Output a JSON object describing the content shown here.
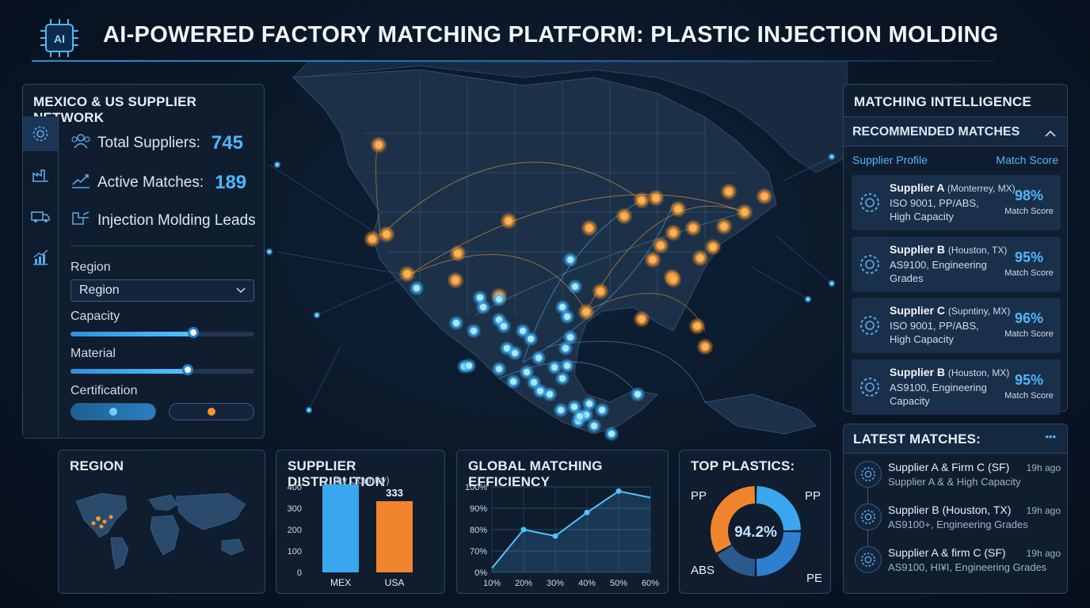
{
  "header": {
    "title": "AI-POWERED FACTORY MATCHING PLATFORM: PLASTIC INJECTION MOLDING",
    "logo_text": "AI"
  },
  "left_panel": {
    "title": "MEXICO & US SUPPLIER NETWORK",
    "sidebar_icons": [
      "gear-icon",
      "factory-icon",
      "truck-icon",
      "chart-icon"
    ],
    "stats": [
      {
        "label": "Total Suppliers:",
        "value": "745",
        "icon": "users-icon"
      },
      {
        "label": "Active Matches:",
        "value": "189",
        "icon": "trend-icon"
      },
      {
        "label": "Injection Molding Leads",
        "value": "",
        "icon": "molding-icon"
      }
    ],
    "filters": {
      "region_label": "Region",
      "region_value": "Region",
      "capacity_label": "Capacity",
      "capacity_level": 0.67,
      "material_label": "Material",
      "material_level": 0.64,
      "certification_label": "Certification"
    }
  },
  "region_panel": {
    "title": "REGION"
  },
  "supplier_distribution": {
    "title": "SUPPLIER DISTRIBUTION",
    "subtitle": "(by Country)"
  },
  "efficiency": {
    "title": "GLOBAL MATCHING EFFICIENCY"
  },
  "top_plastics": {
    "title": "TOP PLASTICS:",
    "center": "94.2%"
  },
  "matching": {
    "title": "MATCHING INTELLIGENCE",
    "section": "RECOMMENDED MATCHES",
    "col_profile": "Supplier Profile",
    "col_score": "Match Score",
    "cards": [
      {
        "name": "Supplier A",
        "loc": "(Monterrey, MX)",
        "desc": "ISO 9001, PP/ABS, High Capacity",
        "score": "98%",
        "score_label": "Match Score"
      },
      {
        "name": "Supplier B",
        "loc": "(Houston, TX)",
        "desc": "AS9100, Engineering Grades",
        "score": "95%",
        "score_label": "Match Score"
      },
      {
        "name": "Supplier C",
        "loc": "(Supntiny, MX)",
        "desc": "ISO 9001, PP/ABS, High Capacity",
        "score": "96%",
        "score_label": "Match Score"
      },
      {
        "name": "Supplier B",
        "loc": "(Houston, MX)",
        "desc": "AS9100, Engineering Capacity",
        "score": "95%",
        "score_label": "Match Score"
      }
    ]
  },
  "latest": {
    "title": "LATEST MATCHES:",
    "more": "•••",
    "items": [
      {
        "title": "Supplier A & Firm C (SF)",
        "time": "19h ago",
        "sub": "Supplier A & & High Capacity"
      },
      {
        "title": "Supplier B (Houston, TX)",
        "time": "19h ago",
        "sub": "AS9100+, Engineering Grades"
      },
      {
        "title": "Supplier A & firm C (SF)",
        "time": "19h ago",
        "sub": "AS9100, HI¥I, Engineering Grades"
      }
    ]
  },
  "colors": {
    "accent": "#4fb6ff",
    "orange": "#f5a03a",
    "panel": "#101e30"
  },
  "chart_data": [
    {
      "type": "bar",
      "title": "SUPPLIER DISTRIBUTION",
      "subtitle": "(by Country)",
      "categories": [
        "MEX",
        "USA"
      ],
      "values": [
        412,
        333
      ],
      "colors": [
        "#3aa7ee",
        "#f0852e"
      ],
      "ylim": [
        0,
        400
      ],
      "yticks": [
        0,
        100,
        200,
        300,
        400
      ],
      "data_labels": [
        "412",
        "333"
      ]
    },
    {
      "type": "area",
      "title": "GLOBAL MATCHING EFFICIENCY",
      "x": [
        10,
        20,
        30,
        40,
        50,
        60
      ],
      "xticks": [
        "10%",
        "20%",
        "30%",
        "40%",
        "50%",
        "60%"
      ],
      "y": [
        14,
        80,
        77,
        88,
        98,
        95
      ],
      "yticks": [
        "0%",
        "70%",
        "80%",
        "90%",
        "100%"
      ],
      "grid": true
    },
    {
      "type": "pie",
      "title": "TOP PLASTICS:",
      "center_label": "94.2%",
      "labels": [
        "PP",
        "PP",
        "PE",
        "ABS"
      ],
      "values": [
        25,
        25,
        25,
        25
      ],
      "colors": [
        "#3aa7ee",
        "#3aa7ee",
        "#2f7fd0",
        "#2a5a8c"
      ]
    }
  ]
}
